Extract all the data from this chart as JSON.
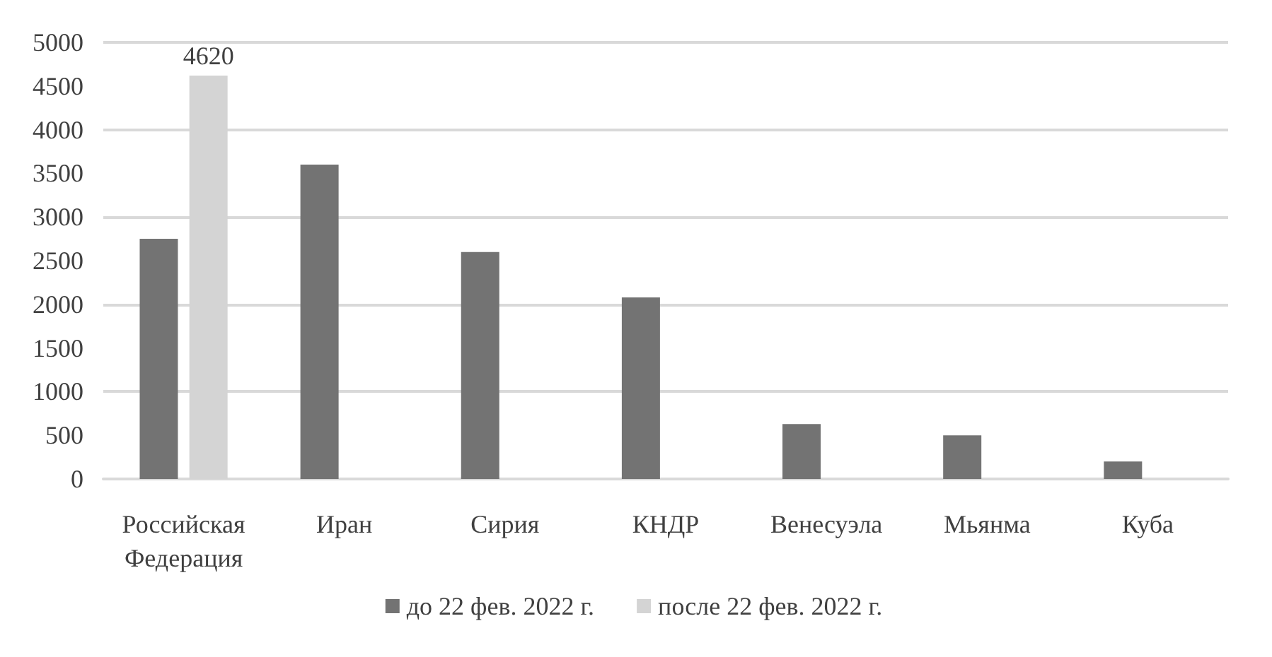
{
  "chart_data": {
    "type": "bar",
    "categories": [
      "Российская\nФедерация",
      "Иран",
      "Сирия",
      "КНДР",
      "Венесуэла",
      "Мьянма",
      "Куба"
    ],
    "series": [
      {
        "name": "до 22 фев. 2022 г.",
        "color": "#737373",
        "values": [
          2750,
          3600,
          2600,
          2080,
          630,
          500,
          200
        ]
      },
      {
        "name": "после 22 фев. 2022 г.",
        "color": "#d4d4d4",
        "values": [
          4620,
          null,
          null,
          null,
          null,
          null,
          null
        ],
        "value_labels": [
          "4620",
          null,
          null,
          null,
          null,
          null,
          null
        ]
      }
    ],
    "ylim": [
      0,
      5000
    ],
    "yticks": [
      0,
      500,
      1000,
      1500,
      2000,
      2500,
      3000,
      3500,
      4000,
      4500,
      5000
    ],
    "grid": "y",
    "legend": "bottom"
  }
}
